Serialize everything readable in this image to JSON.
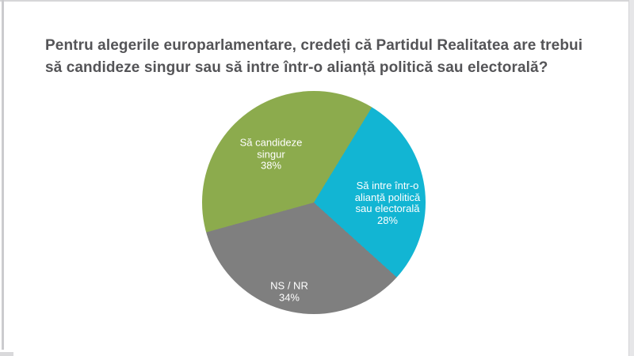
{
  "page": {
    "background": "#ffffff",
    "frame_color": "#d9d9db"
  },
  "title": {
    "full": "Pentru alegerile europarlamentare, credeți că Partidul Realitatea are trebui să candideze singur sau să intre într-o alianță politică sau electorală?",
    "line1": "Pentru alegerile europarlamentare, credeți că Partidul Realitatea are trebui",
    "line2": "să candideze singur sau să intre într-o alianță politică sau electorală?",
    "color": "#545457"
  },
  "chart_data": {
    "type": "pie",
    "title": "Pentru alegerile europarlamentare, credeți că Partidul Realitatea are trebui să candideze singur sau să intre într-o alianță politică sau electorală?",
    "legend_position": "none",
    "labels_position": "inside",
    "rotation_deg": 254.5,
    "label_text_color": "#ffffff",
    "slices": [
      {
        "label": "Să candideze singur",
        "value": 38,
        "pct": "38%",
        "color": "#8CAB4D",
        "lines": [
          "Să candideze",
          "singur",
          "38%"
        ]
      },
      {
        "label": "Să intre într-o alianță politică sau electorală",
        "value": 28,
        "pct": "28%",
        "color": "#12B5D3",
        "lines": [
          "Să intre într-o",
          "alianță politică",
          "sau electorală",
          "28%"
        ]
      },
      {
        "label": "NS / NR",
        "value": 34,
        "pct": "34%",
        "color": "#7F7F7F",
        "lines": [
          "NS / NR",
          "34%"
        ]
      }
    ]
  }
}
